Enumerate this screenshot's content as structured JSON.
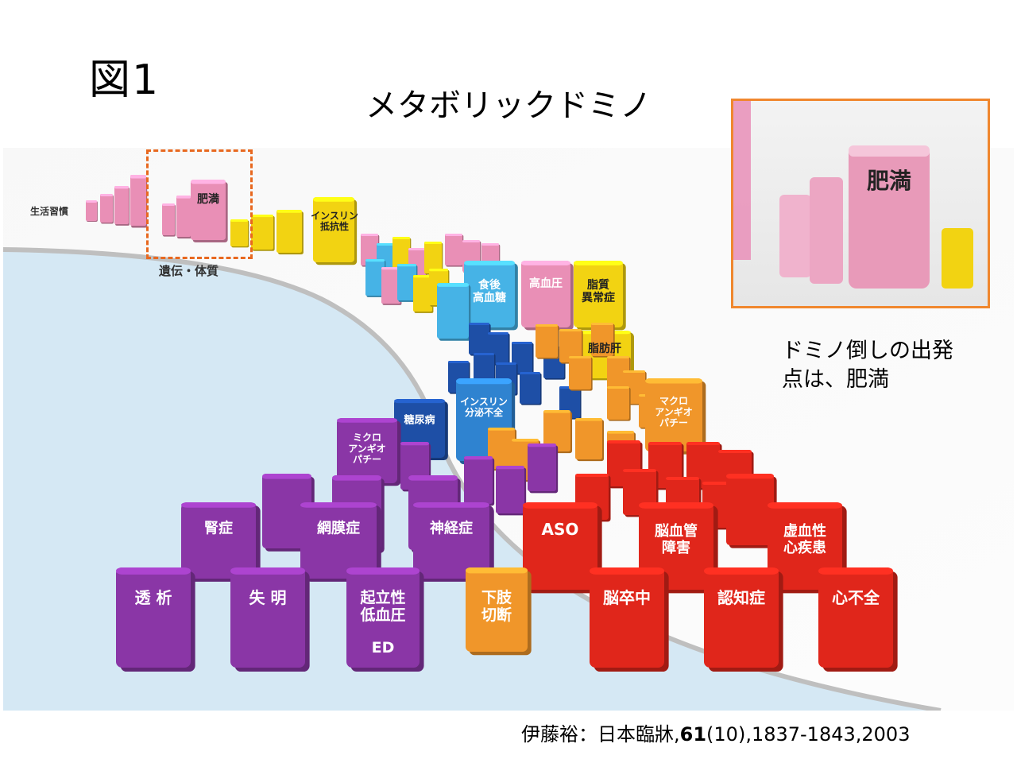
{
  "figure_label": "図1",
  "title": "メタボリックドミノ",
  "labels": {
    "lifestyle": "生活習慣",
    "genetics": "遺伝・体質",
    "obesity": "肥満",
    "insulin_resistance": [
      "インスリン",
      "抵抗性"
    ],
    "postprandial": [
      "食後",
      "高血糖"
    ],
    "hypertension": "高血圧",
    "dyslipidemia": [
      "脂質",
      "異常症"
    ],
    "fatty_liver": "脂肪肝",
    "insulin_secretion": [
      "インスリン",
      "分泌不全"
    ],
    "diabetes": "糖尿病",
    "macroangiopathy": [
      "マクロ",
      "アンギオ",
      "パチー"
    ],
    "microangiopathy": [
      "ミクロ",
      "アンギオ",
      "パチー"
    ],
    "nephropathy": "腎症",
    "retinopathy": "網膜症",
    "neuropathy": "神経症",
    "aso": "ASO",
    "cerebrovascular": [
      "脳血管",
      "障害"
    ],
    "ischemic": [
      "虚血性",
      "心疾患"
    ],
    "dialysis": "透 析",
    "blindness": "失 明",
    "orthostatic": [
      "起立性",
      "低血圧"
    ],
    "ed": "ED",
    "amputation": [
      "下肢",
      "切断"
    ],
    "stroke": "脳卒中",
    "dementia": "認知症",
    "heart_failure": "心不全"
  },
  "zoom_label": "肥満",
  "caption": [
    "ドミノ倒しの出発",
    "点は、肥満"
  ],
  "citation": {
    "prefix": "伊藤裕：日本臨牀,",
    "volume": "61",
    "rest": "(10),1837-1843,2003"
  },
  "colors": {
    "pink": "#e98fb6",
    "yellow": "#f2d312",
    "blue": "#2f83d0",
    "navy": "#1e4fa6",
    "orange": "#f0962a",
    "purple": "#8a36a6",
    "red": "#e0261b",
    "road": "#e6e6e6",
    "accent": "#f0872e"
  }
}
